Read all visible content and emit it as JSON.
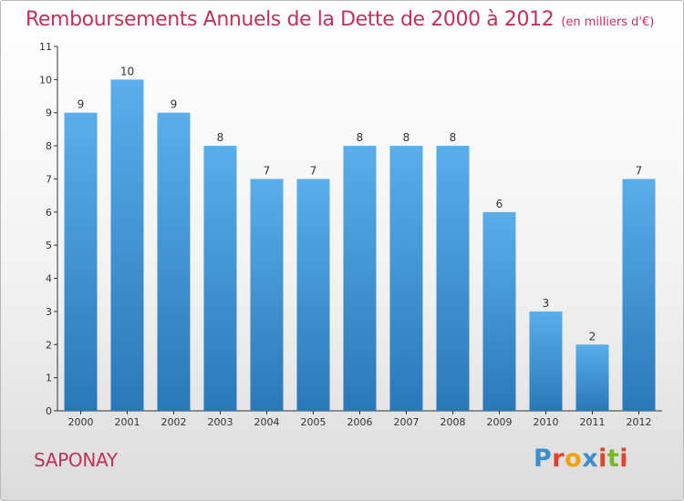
{
  "header": {
    "title": "Remboursements Annuels de la Dette de 2000 à 2012",
    "subtitle": "(en milliers d'€)"
  },
  "footer": {
    "city": "SAPONAY",
    "logo": "Proxiti"
  },
  "colors": {
    "title": "#c0325a",
    "bar_top": "#5aaeea",
    "bar_bottom": "#2a78b8",
    "axis": "#333333",
    "logo_letters": [
      "#3a8fd0",
      "#e0422a",
      "#f2a20c",
      "#3a8fd0",
      "#e0422a",
      "#7ab82a",
      "#e0422a"
    ]
  },
  "chart_data": {
    "type": "bar",
    "title": "Remboursements Annuels de la Dette de 2000 à 2012",
    "subtitle": "(en milliers d'€)",
    "categories": [
      "2000",
      "2001",
      "2002",
      "2003",
      "2004",
      "2005",
      "2006",
      "2007",
      "2008",
      "2009",
      "2010",
      "2011",
      "2012"
    ],
    "values": [
      9,
      10,
      9,
      8,
      7,
      7,
      8,
      8,
      8,
      6,
      3,
      2,
      7
    ],
    "ylim": [
      0,
      11
    ],
    "yticks": [
      "0",
      "1",
      "2",
      "3",
      "4",
      "5",
      "6",
      "7",
      "8",
      "9",
      "10",
      "11"
    ],
    "xlabel": "",
    "ylabel": "",
    "grid": false,
    "data_labels": true
  }
}
